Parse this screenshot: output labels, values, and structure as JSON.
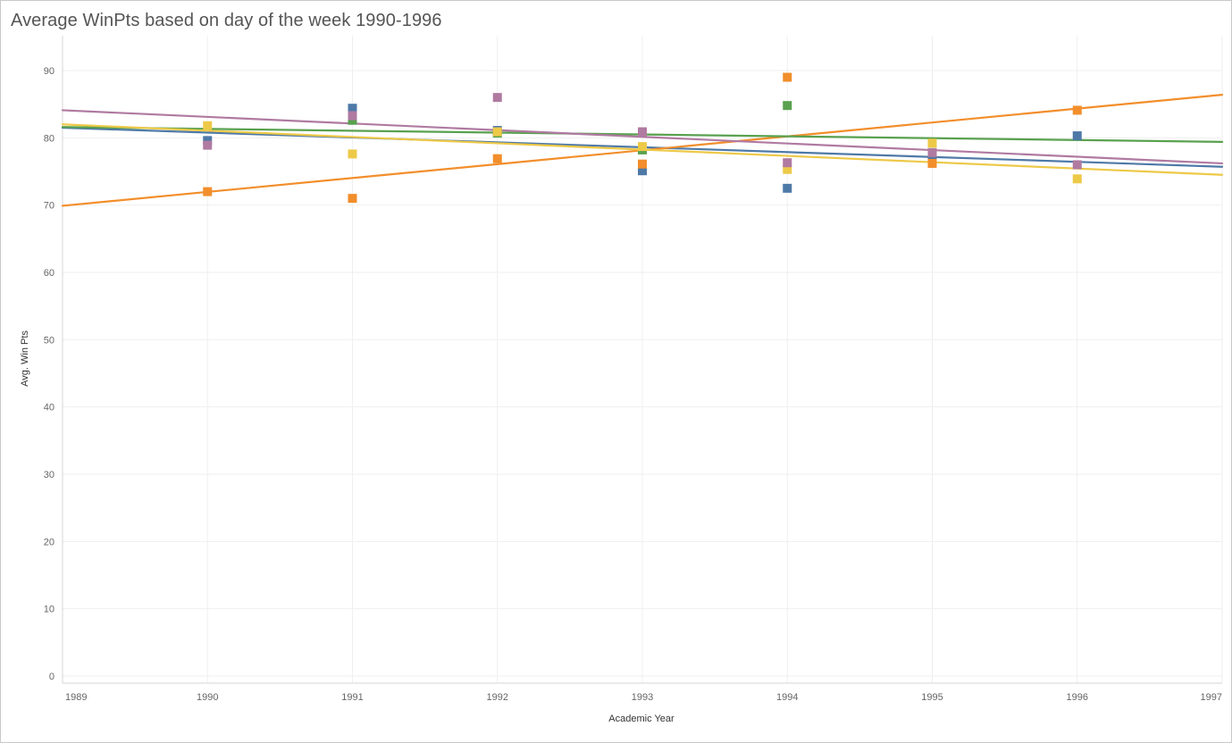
{
  "chart_data": {
    "type": "scatter",
    "title": "Average WinPts based on day of the week 1990-1996",
    "xlabel": "Academic Year",
    "ylabel": "Avg. Win Pts",
    "xlim": [
      1989,
      1997
    ],
    "ylim": [
      0,
      90
    ],
    "x_ticks": [
      "1989",
      "1990",
      "1991",
      "1992",
      "1993",
      "1994",
      "1995",
      "1996",
      "1997"
    ],
    "y_ticks": [
      "0",
      "10",
      "20",
      "30",
      "40",
      "50",
      "60",
      "70",
      "80",
      "90"
    ],
    "grid": true,
    "legend": "none",
    "marker": "square",
    "trend_lines": true,
    "series": [
      {
        "color": "#4e79a7",
        "points": [
          [
            1990,
            79.6
          ],
          [
            1991,
            84.4
          ],
          [
            1992,
            81.1
          ],
          [
            1993,
            75.1
          ],
          [
            1994,
            72.5
          ],
          [
            1995,
            77.2
          ],
          [
            1996,
            80.3
          ]
        ],
        "trend": [
          [
            1989,
            81.5
          ],
          [
            1997,
            75.7
          ]
        ]
      },
      {
        "color": "#f28e2b",
        "points": [
          [
            1990,
            72.0
          ],
          [
            1991,
            71.0
          ],
          [
            1992,
            76.9
          ],
          [
            1993,
            76.1
          ],
          [
            1994,
            89.0
          ],
          [
            1995,
            76.2
          ],
          [
            1996,
            84.1
          ]
        ],
        "trend": [
          [
            1989,
            69.9
          ],
          [
            1997,
            86.4
          ]
        ]
      },
      {
        "color": "#59a14f",
        "points": [
          [
            1991,
            82.6
          ],
          [
            1992,
            80.7
          ],
          [
            1993,
            78.2
          ],
          [
            1994,
            84.8
          ],
          [
            1995,
            77.8
          ]
        ],
        "trend": [
          [
            1989,
            81.6
          ],
          [
            1997,
            79.4
          ]
        ]
      },
      {
        "color": "#edc948",
        "points": [
          [
            1990,
            81.8
          ],
          [
            1991,
            77.6
          ],
          [
            1992,
            80.9
          ],
          [
            1993,
            78.7
          ],
          [
            1994,
            75.3
          ],
          [
            1995,
            79.2
          ],
          [
            1996,
            73.9
          ]
        ],
        "trend": [
          [
            1989,
            82.0
          ],
          [
            1997,
            74.5
          ]
        ]
      },
      {
        "color": "#b07aa1",
        "points": [
          [
            1990,
            78.9
          ],
          [
            1991,
            83.3
          ],
          [
            1992,
            86.0
          ],
          [
            1993,
            80.9
          ],
          [
            1994,
            76.3
          ],
          [
            1995,
            77.8
          ],
          [
            1996,
            76.0
          ]
        ],
        "trend": [
          [
            1989,
            84.1
          ],
          [
            1997,
            76.2
          ]
        ]
      }
    ]
  }
}
